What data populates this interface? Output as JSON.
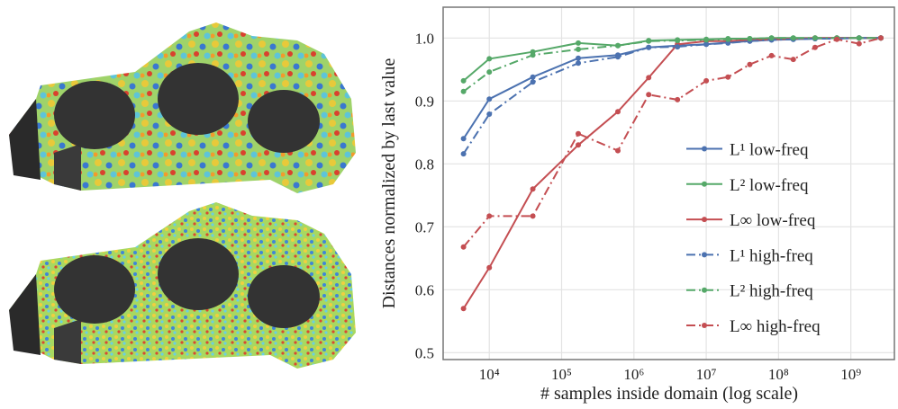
{
  "chart_data": {
    "type": "line",
    "xlabel": "# samples inside domain (log scale)",
    "ylabel": "Distances normalized by last value",
    "x": [
      4400,
      10000,
      40000,
      170000,
      600000,
      1600000,
      4000000,
      10000000,
      20000000,
      40000000,
      80000000,
      160000000,
      320000000,
      640000000,
      1300000000,
      2600000000
    ],
    "series": [
      {
        "name": "L¹ low-freq",
        "color": "#4c72b0",
        "linestyle": "solid",
        "values": [
          0.84,
          0.903,
          0.938,
          0.968,
          0.973,
          0.985,
          0.988,
          0.99,
          0.993,
          0.995,
          0.997,
          0.998,
          0.999,
          1.0,
          1.0,
          1.0
        ]
      },
      {
        "name": "L² low-freq",
        "color": "#55a868",
        "linestyle": "solid",
        "values": [
          0.932,
          0.967,
          0.978,
          0.992,
          0.988,
          0.996,
          0.997,
          0.998,
          0.999,
          0.999,
          1.0,
          1.0,
          1.0,
          1.0,
          1.0,
          1.0
        ]
      },
      {
        "name": "L∞ low-freq",
        "color": "#c44e52",
        "linestyle": "solid",
        "values": [
          0.57,
          0.635,
          0.76,
          0.83,
          0.883,
          0.937,
          0.99,
          0.995,
          0.995,
          0.997,
          0.998,
          0.999,
          1.0,
          1.0,
          1.0,
          1.0
        ]
      },
      {
        "name": "L¹ high-freq",
        "color": "#4c72b0",
        "linestyle": "dashdot",
        "values": [
          0.816,
          0.879,
          0.93,
          0.96,
          0.97,
          0.985,
          0.986,
          0.99,
          0.992,
          0.995,
          0.997,
          0.998,
          0.999,
          0.999,
          1.0,
          1.0
        ]
      },
      {
        "name": "L² high-freq",
        "color": "#55a868",
        "linestyle": "dashdot",
        "values": [
          0.915,
          0.946,
          0.973,
          0.982,
          0.988,
          0.995,
          0.996,
          0.997,
          0.998,
          0.999,
          1.0,
          1.0,
          1.0,
          1.0,
          1.0,
          1.0
        ]
      },
      {
        "name": "L∞ high-freq",
        "color": "#c44e52",
        "linestyle": "dashdot",
        "values": [
          0.668,
          0.717,
          0.717,
          0.848,
          0.821,
          0.91,
          0.902,
          0.932,
          0.938,
          0.958,
          0.972,
          0.966,
          0.985,
          0.998,
          0.991,
          1.0
        ]
      }
    ],
    "xscale": "log",
    "xlim": [
      2300,
      4000000000
    ],
    "xticks": [
      {
        "value": 10000,
        "label": "10⁴"
      },
      {
        "value": 100000,
        "label": "10⁵"
      },
      {
        "value": 1000000,
        "label": "10⁶"
      },
      {
        "value": 10000000,
        "label": "10⁷"
      },
      {
        "value": 100000000,
        "label": "10⁸"
      },
      {
        "value": 1000000000,
        "label": "10⁹"
      }
    ],
    "ylim": [
      0.489,
      1.049
    ],
    "yticks": [
      0.5,
      0.6,
      0.7,
      0.8,
      0.9,
      {
        "value": 1.0,
        "label": "1.0"
      }
    ],
    "grid": true,
    "legend": "lower right"
  }
}
